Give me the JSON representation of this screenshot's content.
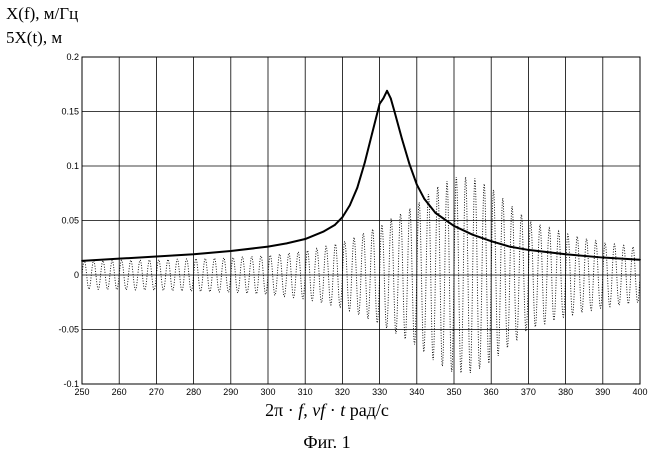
{
  "chart_data": {
    "type": "line",
    "ylabels": [
      "X(f), м/Гц",
      "5X(t), м"
    ],
    "xlabel": {
      "pre": "2π · ",
      "f": "f",
      "mid": ", ",
      "vf": "vf",
      "dot": " · ",
      "t": "t",
      "post": "  рад/с"
    },
    "caption": "Фиг. 1",
    "xlim": [
      250,
      400
    ],
    "ylim": [
      -0.1,
      0.2
    ],
    "x_ticks": [
      "250",
      "260",
      "270",
      "280",
      "290",
      "300",
      "310",
      "320",
      "330",
      "340",
      "350",
      "360",
      "370",
      "380",
      "390",
      "400"
    ],
    "y_ticks": [
      "-0.1",
      "-0.05",
      "0",
      "0.05",
      "0.1",
      "0.15",
      "0.2"
    ],
    "grid": true,
    "series": [
      {
        "style": "solid",
        "x": [
          250,
          260,
          270,
          280,
          290,
          300,
          305,
          310,
          315,
          318,
          320,
          322,
          324,
          326,
          328,
          330,
          331,
          332,
          333,
          334,
          336,
          338,
          340,
          342,
          345,
          350,
          355,
          360,
          365,
          370,
          380,
          390,
          400
        ],
        "y": [
          0.013,
          0.015,
          0.017,
          0.019,
          0.022,
          0.026,
          0.029,
          0.033,
          0.04,
          0.046,
          0.053,
          0.064,
          0.08,
          0.103,
          0.13,
          0.157,
          0.162,
          0.169,
          0.162,
          0.15,
          0.125,
          0.102,
          0.083,
          0.07,
          0.057,
          0.045,
          0.037,
          0.031,
          0.026,
          0.023,
          0.019,
          0.016,
          0.014
        ]
      },
      {
        "style": "dotted",
        "oscillation_frequency": 0.4,
        "envelope_x": [
          250,
          270,
          290,
          300,
          310,
          320,
          330,
          340,
          345,
          350,
          355,
          360,
          365,
          370,
          380,
          390,
          400
        ],
        "envelope_y": [
          0.013,
          0.014,
          0.016,
          0.018,
          0.022,
          0.03,
          0.045,
          0.065,
          0.08,
          0.09,
          0.09,
          0.08,
          0.065,
          0.05,
          0.038,
          0.03,
          0.025
        ]
      }
    ]
  }
}
